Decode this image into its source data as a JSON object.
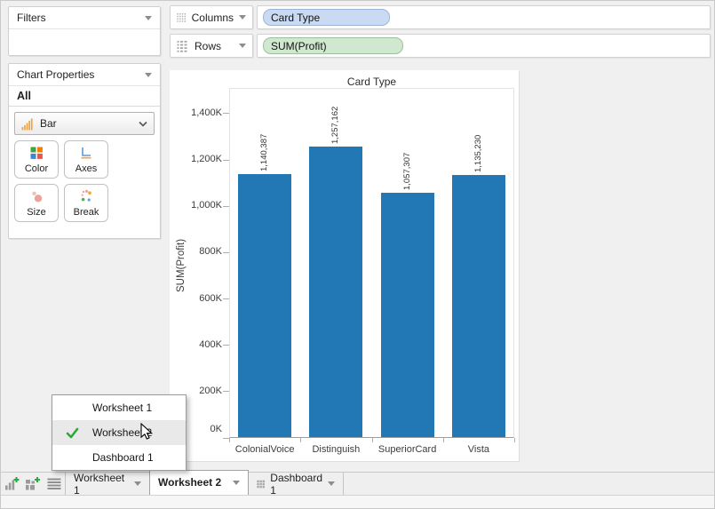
{
  "left_panel": {
    "filters": {
      "title": "Filters"
    },
    "chart_properties": {
      "title": "Chart Properties",
      "scope_label": "All",
      "chart_type_selector": {
        "value": "Bar",
        "icon": "bar-chart-icon"
      },
      "property_buttons": [
        {
          "label": "Color",
          "icon": "color-swatches-icon"
        },
        {
          "label": "Axes",
          "icon": "axes-icon"
        },
        {
          "label": "Size",
          "icon": "size-circles-icon"
        },
        {
          "label": "Break",
          "icon": "break-scatter-icon"
        }
      ]
    }
  },
  "shelves": {
    "columns": {
      "label": "Columns",
      "pill": {
        "text": "Card Type",
        "fill": "#c9daf2",
        "border": "#9db4d6"
      }
    },
    "rows": {
      "label": "Rows",
      "pill": {
        "text": "SUM(Profit)",
        "fill": "#cfe8cf",
        "border": "#9fc09f"
      }
    }
  },
  "chart_data": {
    "type": "bar",
    "title": "Card Type",
    "categories": [
      "ColonialVoice",
      "Distinguish",
      "SuperiorCard",
      "Vista"
    ],
    "values": [
      1140387,
      1257162,
      1057307,
      1135230
    ],
    "value_labels": [
      "1,140,387",
      "1,257,162",
      "1,057,307",
      "1,135,230"
    ],
    "xlabel": "",
    "ylabel": "SUM(Profit)",
    "ylim": [
      0,
      1511000
    ],
    "ytick_step": 200000,
    "yticks": [
      "0K",
      "200K",
      "400K",
      "600K",
      "800K",
      "1,000K",
      "1,200K",
      "1,400K"
    ],
    "bar_color": "#2178b4",
    "grid": false,
    "legend": false
  },
  "context_menu": {
    "check_color": "#2fa838",
    "items": [
      {
        "label": "Worksheet 1",
        "checked": false,
        "highlighted": false
      },
      {
        "label": "Worksheet 2",
        "checked": true,
        "highlighted": true
      },
      {
        "label": "Dashboard 1",
        "checked": false,
        "highlighted": false
      }
    ]
  },
  "tab_bar": {
    "plus_color": "#28a745",
    "tabs": [
      {
        "label": "Worksheet 1",
        "active": false
      },
      {
        "label": "Worksheet 2",
        "active": true
      },
      {
        "label": "Dashboard 1",
        "active": false
      }
    ]
  }
}
